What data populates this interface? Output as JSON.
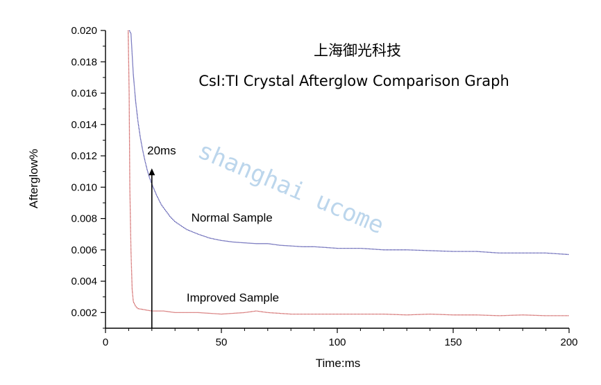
{
  "chart_data": {
    "type": "line",
    "title": "上海御光科技",
    "subtitle": "CsI:TI Crystal Afterglow Comparison Graph",
    "xlabel": "Time:ms",
    "ylabel": "Afterglow%",
    "xlim": [
      0,
      200
    ],
    "ylim": [
      0.001,
      0.02
    ],
    "x_ticks": [
      0,
      50,
      100,
      150,
      200
    ],
    "y_ticks": [
      0.002,
      0.004,
      0.006,
      0.008,
      0.01,
      0.012,
      0.014,
      0.016,
      0.018,
      0.02
    ],
    "grid": false,
    "legend": "none",
    "series": [
      {
        "color": "#2b2b9a",
        "x": [
          10.3,
          11,
          12,
          13,
          14,
          15,
          16,
          17,
          18,
          19,
          20,
          22,
          24,
          26,
          28,
          30,
          35,
          40,
          45,
          50,
          55,
          60,
          65,
          70,
          75,
          80,
          85,
          90,
          95,
          100,
          110,
          120,
          130,
          140,
          150,
          160,
          170,
          180,
          190,
          200
        ],
        "values": [
          0.02,
          0.0198,
          0.0172,
          0.0155,
          0.0142,
          0.0132,
          0.0124,
          0.0117,
          0.0111,
          0.0106,
          0.0102,
          0.0095,
          0.0089,
          0.0085,
          0.0081,
          0.0078,
          0.0073,
          0.007,
          0.00675,
          0.0066,
          0.0065,
          0.00645,
          0.0064,
          0.0064,
          0.0063,
          0.00625,
          0.0062,
          0.0062,
          0.00615,
          0.0061,
          0.0061,
          0.006,
          0.006,
          0.00595,
          0.0059,
          0.0059,
          0.0058,
          0.0058,
          0.0058,
          0.0057
        ]
      },
      {
        "color": "#c43a3a",
        "x": [
          9.8,
          10.2,
          10.5,
          11,
          11.5,
          12,
          13,
          14,
          16,
          18,
          20,
          25,
          30,
          40,
          50,
          60,
          65,
          70,
          80,
          90,
          100,
          110,
          120,
          130,
          140,
          150,
          160,
          170,
          180,
          190,
          200
        ],
        "values": [
          0.02,
          0.016,
          0.01,
          0.006,
          0.0035,
          0.0027,
          0.0024,
          0.00225,
          0.0022,
          0.00215,
          0.0021,
          0.0021,
          0.002,
          0.002,
          0.0019,
          0.002,
          0.0021,
          0.002,
          0.0019,
          0.0019,
          0.0019,
          0.0019,
          0.0019,
          0.00185,
          0.0019,
          0.00185,
          0.00185,
          0.0018,
          0.00185,
          0.0018,
          0.0018
        ]
      }
    ],
    "annotations": [
      {
        "text": "Normal Sample",
        "x": 37,
        "y": 0.0078
      },
      {
        "text": "Improved Sample",
        "x": 35,
        "y": 0.0027
      },
      {
        "text": "20ms",
        "x": 18,
        "y": 0.0121
      }
    ],
    "arrow": {
      "x": 20,
      "y_from": 0.001,
      "y_to": 0.0112
    },
    "watermark": "shanghai ucome"
  }
}
